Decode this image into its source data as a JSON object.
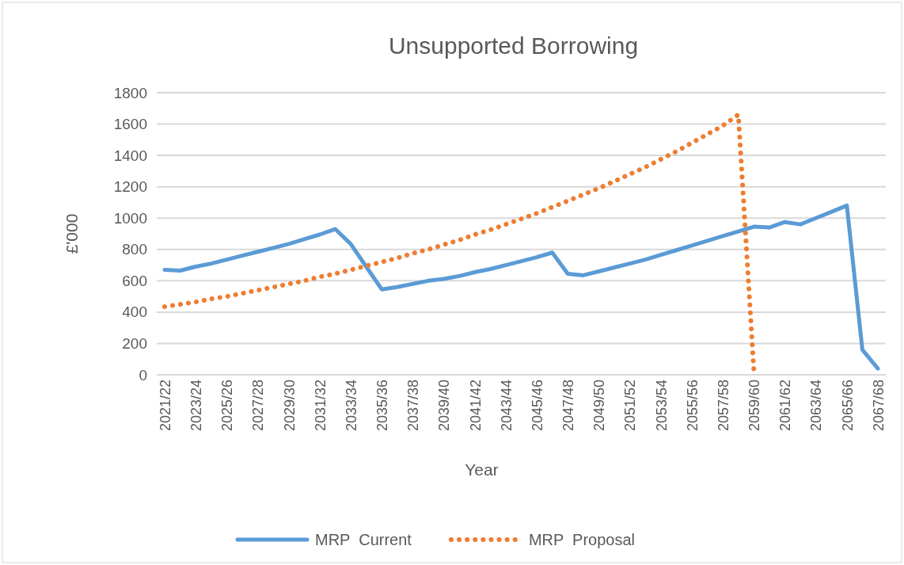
{
  "chart_data": {
    "type": "line",
    "title": "Unsupported Borrowing",
    "xlabel": "Year",
    "ylabel": "£'000",
    "categories": [
      "2021/22",
      null,
      "2023/24",
      null,
      "2025/26",
      null,
      "2027/28",
      null,
      "2029/30",
      null,
      "2031/32",
      null,
      "2033/34",
      null,
      "2035/36",
      null,
      "2037/38",
      null,
      "2039/40",
      null,
      "2041/42",
      null,
      "2043/44",
      null,
      "2045/46",
      null,
      "2047/48",
      null,
      "2049/50",
      null,
      "2051/52",
      null,
      "2053/54",
      null,
      "2055/56",
      null,
      "2057/58",
      null,
      "2059/60",
      null,
      "2061/62",
      null,
      "2063/64",
      null,
      "2065/66",
      null,
      "2067/68"
    ],
    "series": [
      {
        "name": "MRP  Current",
        "color": "#5b9bd5",
        "line_style": "solid",
        "values": [
          670,
          665,
          690,
          710,
          735,
          760,
          785,
          810,
          835,
          865,
          895,
          930,
          835,
          690,
          545,
          560,
          580,
          600,
          612,
          630,
          655,
          675,
          700,
          725,
          750,
          780,
          645,
          635,
          660,
          685,
          710,
          735,
          765,
          795,
          825,
          855,
          885,
          915,
          945,
          940,
          975,
          960,
          1000,
          1040,
          1080,
          160,
          40
        ]
      },
      {
        "name": "MRP  Proposal",
        "color": "#ed7d31",
        "line_style": "dotted",
        "values": [
          435,
          450,
          465,
          485,
          500,
          520,
          540,
          560,
          580,
          600,
          625,
          645,
          670,
          695,
          720,
          745,
          775,
          800,
          830,
          860,
          895,
          925,
          960,
          995,
          1030,
          1070,
          1110,
          1150,
          1190,
          1235,
          1280,
          1325,
          1375,
          1425,
          1480,
          1535,
          1590,
          1660,
          30,
          null,
          null,
          null,
          null,
          null,
          null,
          null,
          null
        ]
      }
    ],
    "ylim": [
      0,
      1800
    ],
    "yticks": [
      0,
      200,
      400,
      600,
      800,
      1000,
      1200,
      1400,
      1600,
      1800
    ],
    "grid": "y",
    "legend": "bottom",
    "marker": "none"
  }
}
